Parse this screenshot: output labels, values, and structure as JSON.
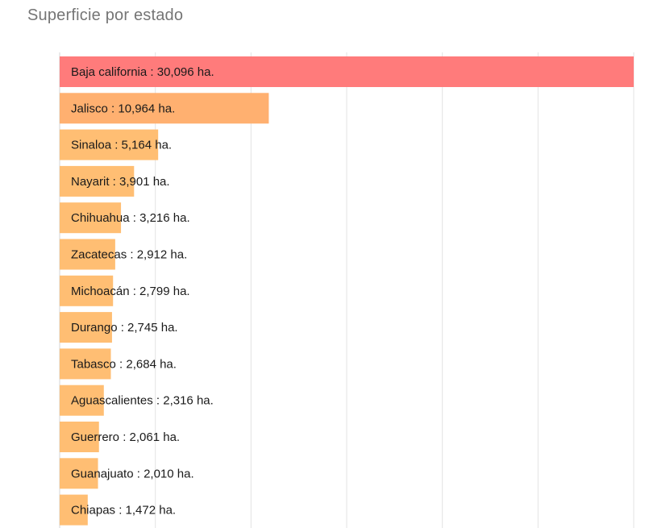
{
  "chart_title": "Superficie por estado",
  "chart_data": {
    "type": "bar",
    "orientation": "horizontal",
    "title": "Superficie por estado",
    "xlim": [
      0,
      30096
    ],
    "grid": true,
    "categories": [
      "Baja california",
      "Jalisco",
      "Sinaloa",
      "Nayarit",
      "Chihuahua",
      "Zacatecas",
      "Michoacán",
      "Durango",
      "Tabasco",
      "Aguascalientes",
      "Guerrero",
      "Guanajuato",
      "Chiapas"
    ],
    "values": [
      30096,
      10964,
      5164,
      3901,
      3216,
      2912,
      2799,
      2745,
      2684,
      2316,
      2061,
      2010,
      1472
    ],
    "labels": [
      "Baja california : 30,096 ha.",
      "Jalisco : 10,964 ha.",
      "Sinaloa : 5,164 ha.",
      "Nayarit : 3,901 ha.",
      "Chihuahua : 3,216 ha.",
      "Zacatecas : 2,912 ha.",
      "Michoacán : 2,799 ha.",
      "Durango : 2,745 ha.",
      "Tabasco : 2,684 ha.",
      "Aguascalientes : 2,316 ha.",
      "Guerrero : 2,061 ha.",
      "Guanajuato : 2,010 ha.",
      "Chiapas : 1,472 ha."
    ],
    "colors": {
      "highlight": "#ff7b7b",
      "default": "#ffbe73",
      "medium": "#ffb070",
      "grid": "#e3e3e3"
    }
  }
}
